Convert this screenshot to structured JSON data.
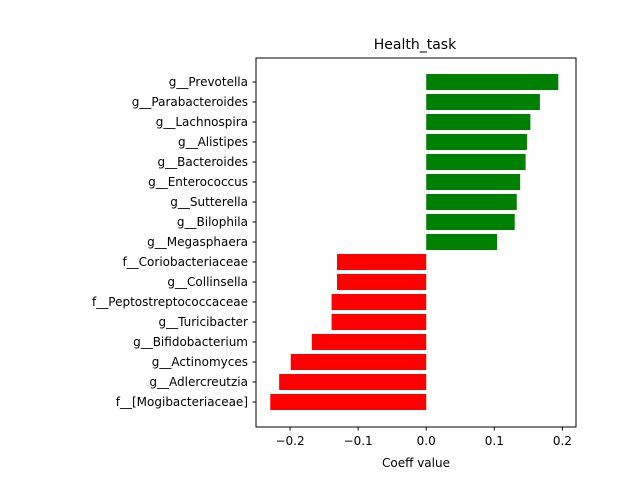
{
  "chart_data": {
    "type": "bar",
    "orientation": "horizontal",
    "title": "Health_task",
    "xlabel": "Coeff value",
    "ylabel": "",
    "xlim": [
      -0.25,
      0.22
    ],
    "xticks": [
      -0.2,
      -0.1,
      0.0,
      0.1,
      0.2
    ],
    "xtick_labels": [
      "−0.2",
      "−0.1",
      "0.0",
      "0.1",
      "0.2"
    ],
    "grid": false,
    "categories": [
      "g__Prevotella",
      "g__Parabacteroides",
      "g__Lachnospira",
      "g__Alistipes",
      "g__Bacteroides",
      "g__Enterococcus",
      "g__Sutterella",
      "g__Bilophila",
      "g__Megasphaera",
      "f__Coriobacteriaceae",
      "g__Collinsella",
      "f__Peptostreptococcaceae",
      "g__Turicibacter",
      "g__Bifidobacterium",
      "g__Actinomyces",
      "g__Adlercreutzia",
      "f__[Mogibacteriaceae]"
    ],
    "values": [
      0.194,
      0.167,
      0.153,
      0.148,
      0.146,
      0.138,
      0.133,
      0.13,
      0.104,
      -0.131,
      -0.131,
      -0.139,
      -0.139,
      -0.168,
      -0.199,
      -0.216,
      -0.229
    ],
    "positive_color": "#008000",
    "negative_color": "#ff0000"
  }
}
